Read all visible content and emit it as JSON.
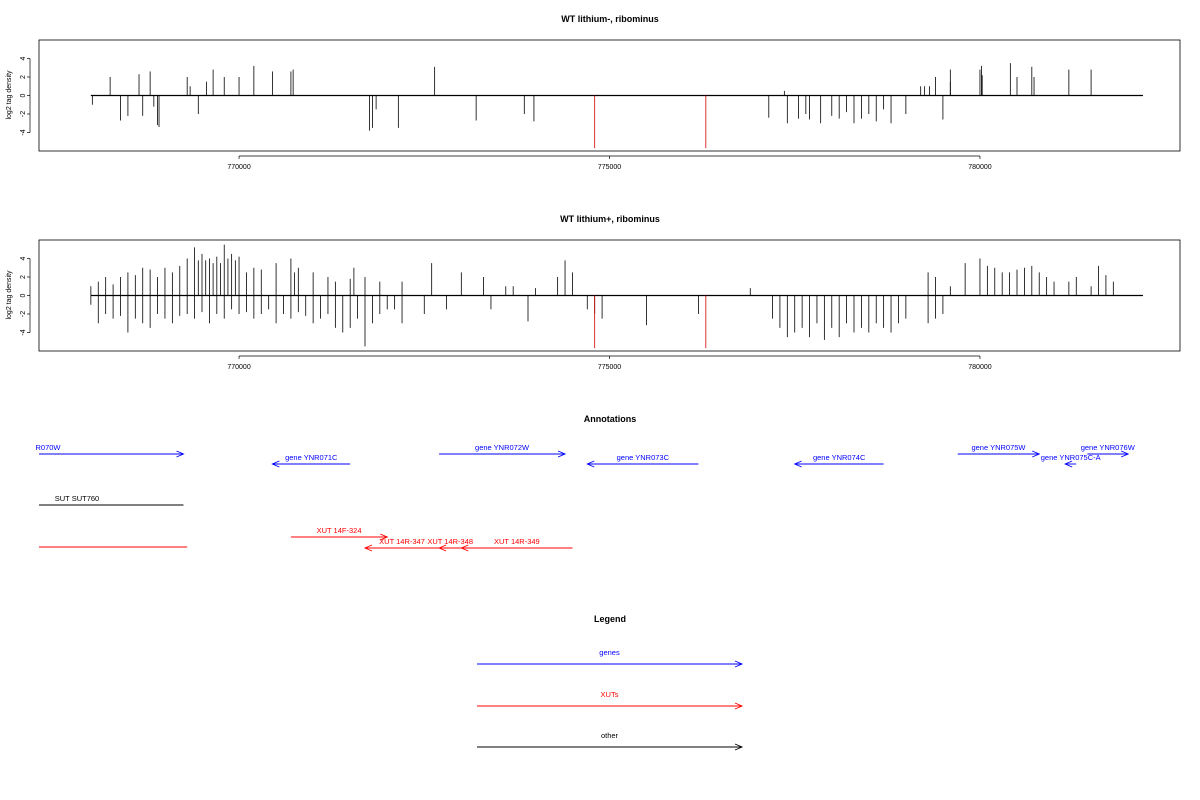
{
  "chart_data": [
    {
      "type": "bar",
      "title": "WT lithium-, ribominus",
      "ylabel": "log2 tag density",
      "xlim": [
        767300,
        782700
      ],
      "ylim": [
        -6,
        6
      ],
      "xticks": [
        770000,
        775000,
        780000
      ],
      "yticks": [
        -4,
        -2,
        0,
        2,
        4
      ],
      "grid": false,
      "series": [
        {
          "strand": "plus",
          "color": "#000000",
          "x": [
            768260,
            768650,
            768800,
            769300,
            769340,
            769560,
            769650,
            769800,
            770000,
            770200,
            770450,
            770700,
            770730,
            772640,
            777360,
            779200,
            779250,
            779320,
            779400,
            779600,
            779600,
            780000,
            780020,
            780030,
            780410,
            780500,
            780700,
            780730,
            781200,
            781500
          ],
          "y": [
            2.0,
            2.3,
            2.6,
            2.0,
            1.0,
            1.5,
            2.8,
            2.0,
            2.0,
            3.2,
            2.6,
            2.6,
            2.8,
            3.1,
            0.5,
            1.0,
            1.0,
            1.0,
            2.0,
            1.5,
            2.8,
            2.8,
            3.2,
            2.2,
            3.5,
            2.0,
            3.1,
            2.0,
            2.8,
            2.8
          ]
        },
        {
          "strand": "minus",
          "color": "#000000",
          "x": [
            768020,
            768400,
            768500,
            768700,
            768850,
            768900,
            768920,
            769450,
            771760,
            771800,
            771850,
            772150,
            773200,
            773850,
            773980,
            777150,
            777400,
            777550,
            777650,
            777700,
            777850,
            778000,
            778100,
            778200,
            778300,
            778400,
            778500,
            778600,
            778700,
            778800,
            779000,
            779500
          ],
          "y": [
            -1.0,
            -2.7,
            -2.2,
            -2.2,
            -1.2,
            -3.2,
            -3.4,
            -2.0,
            -3.8,
            -3.5,
            -1.5,
            -3.5,
            -2.7,
            -2.0,
            -2.8,
            -2.4,
            -3.0,
            -2.5,
            -2.0,
            -2.6,
            -3.0,
            -2.2,
            -2.5,
            -1.8,
            -3.0,
            -2.5,
            -2.0,
            -2.8,
            -1.5,
            -3.0,
            -2.0,
            -2.6
          ]
        },
        {
          "strand": "highlight",
          "color": "#cc0000",
          "x": [
            774800,
            776300
          ],
          "y": [
            -5.7,
            -5.7
          ]
        }
      ]
    },
    {
      "type": "bar",
      "title": "WT lithium+, ribominus",
      "ylabel": "log2 tag density",
      "xlim": [
        767300,
        782700
      ],
      "ylim": [
        -6,
        6
      ],
      "xticks": [
        770000,
        775000,
        780000
      ],
      "yticks": [
        -4,
        -2,
        0,
        2,
        4
      ],
      "grid": false,
      "series": [
        {
          "strand": "plus",
          "color": "#000000",
          "x": [
            768000,
            768100,
            768200,
            768300,
            768400,
            768500,
            768600,
            768700,
            768800,
            768900,
            769000,
            769100,
            769200,
            769300,
            769400,
            769450,
            769500,
            769550,
            769600,
            769650,
            769700,
            769750,
            769800,
            769850,
            769900,
            769950,
            770000,
            770100,
            770200,
            770300,
            770500,
            770700,
            770750,
            770800,
            771000,
            771200,
            771300,
            771500,
            771550,
            771700,
            771900,
            772200,
            772600,
            773000,
            773300,
            773600,
            773700,
            774000,
            774300,
            774400,
            774500,
            776900,
            779300,
            779400,
            779600,
            779800,
            780000,
            780100,
            780200,
            780300,
            780400,
            780500,
            780600,
            780700,
            780800,
            780900,
            781000,
            781200,
            781300,
            781500,
            781600,
            781700,
            781800
          ],
          "y": [
            1.0,
            1.5,
            2.0,
            1.2,
            2.0,
            2.5,
            2.2,
            3.0,
            2.8,
            2.0,
            3.0,
            2.5,
            3.2,
            4.0,
            5.2,
            3.8,
            4.5,
            3.8,
            4.0,
            3.5,
            4.2,
            3.5,
            5.5,
            4.0,
            4.5,
            3.8,
            4.2,
            2.5,
            3.0,
            2.8,
            3.5,
            4.0,
            2.5,
            3.0,
            2.5,
            2.0,
            1.5,
            1.8,
            3.0,
            2.0,
            1.5,
            1.5,
            3.5,
            2.5,
            2.0,
            1.0,
            1.0,
            0.8,
            2.0,
            3.8,
            2.5,
            0.8,
            2.5,
            2.0,
            1.0,
            3.5,
            4.0,
            3.2,
            3.0,
            2.5,
            2.5,
            2.8,
            3.0,
            3.2,
            2.5,
            2.0,
            1.5,
            1.5,
            2.0,
            1.0,
            3.2,
            2.2,
            1.5
          ]
        },
        {
          "strand": "minus",
          "color": "#000000",
          "x": [
            768000,
            768100,
            768200,
            768300,
            768400,
            768500,
            768600,
            768700,
            768800,
            768900,
            769000,
            769100,
            769200,
            769300,
            769400,
            769500,
            769600,
            769700,
            769800,
            769900,
            770000,
            770100,
            770200,
            770300,
            770400,
            770500,
            770600,
            770700,
            770800,
            770900,
            771000,
            771100,
            771200,
            771300,
            771400,
            771500,
            771600,
            771700,
            771800,
            771900,
            772000,
            772100,
            772200,
            772500,
            772800,
            773400,
            773900,
            774700,
            774800,
            774900,
            775500,
            776200,
            777200,
            777300,
            777400,
            777500,
            777600,
            777700,
            777800,
            777900,
            778000,
            778100,
            778200,
            778300,
            778400,
            778500,
            778600,
            778700,
            778800,
            778900,
            779000,
            779300,
            779400,
            779500
          ],
          "y": [
            -1.0,
            -3.0,
            -2.0,
            -2.5,
            -2.2,
            -4.0,
            -2.5,
            -3.0,
            -3.5,
            -2.0,
            -2.5,
            -3.0,
            -2.2,
            -2.0,
            -2.5,
            -1.8,
            -3.0,
            -2.0,
            -2.5,
            -1.5,
            -2.0,
            -1.8,
            -2.5,
            -2.0,
            -1.5,
            -3.0,
            -2.0,
            -2.5,
            -1.8,
            -2.2,
            -3.0,
            -2.5,
            -2.0,
            -3.5,
            -4.0,
            -3.5,
            -2.5,
            -5.5,
            -3.0,
            -2.0,
            -1.5,
            -1.5,
            -3.0,
            -2.0,
            -1.5,
            -1.5,
            -2.8,
            -1.5,
            -2.0,
            -2.5,
            -3.2,
            -2.0,
            -2.5,
            -3.5,
            -4.5,
            -4.0,
            -3.5,
            -4.5,
            -3.0,
            -4.8,
            -3.5,
            -4.5,
            -3.0,
            -4.0,
            -3.5,
            -4.0,
            -3.0,
            -3.5,
            -4.0,
            -3.0,
            -2.5,
            -3.0,
            -2.5,
            -2.0
          ]
        },
        {
          "strand": "highlight",
          "color": "#cc0000",
          "x": [
            774800,
            776300
          ],
          "y": [
            -5.7,
            -5.7
          ]
        }
      ]
    }
  ],
  "annotations": {
    "title": "Annotations",
    "genes": [
      {
        "label": "R070W",
        "x1": 767300,
        "x2": 769250,
        "dir": "right"
      },
      {
        "label": "gene YNR071C",
        "x1": 770450,
        "x2": 771500,
        "dir": "left"
      },
      {
        "label": "gene YNR072W",
        "x1": 772700,
        "x2": 774400,
        "dir": "right"
      },
      {
        "label": "gene YNR073C",
        "x1": 774700,
        "x2": 776200,
        "dir": "left"
      },
      {
        "label": "gene YNR074C",
        "x1": 777500,
        "x2": 778700,
        "dir": "left"
      },
      {
        "label": "gene YNR075W",
        "x1": 779700,
        "x2": 780800,
        "dir": "right"
      },
      {
        "label": "gene YNR075C-A",
        "x1": 781150,
        "x2": 781300,
        "dir": "left"
      },
      {
        "label": "gene YNR076W",
        "x1": 781450,
        "x2": 782000,
        "dir": "right"
      }
    ],
    "other": [
      {
        "label": "SUT SUT760",
        "x1": 767300,
        "x2": 769250,
        "dir": "none"
      }
    ],
    "xuts": [
      {
        "label": "",
        "x1": 767300,
        "x2": 769300,
        "dir": "none"
      },
      {
        "label": "XUT 14F-324",
        "x1": 770700,
        "x2": 772000,
        "dir": "right"
      },
      {
        "label": "XUT 14R-347",
        "x1": 771700,
        "x2": 772700,
        "dir": "left"
      },
      {
        "label": "XUT 14R-348",
        "x1": 772700,
        "x2": 773000,
        "dir": "left"
      },
      {
        "label": "XUT 14R-349",
        "x1": 773000,
        "x2": 774500,
        "dir": "left"
      }
    ]
  },
  "legend": {
    "title": "Legend",
    "items": [
      {
        "label": "genes",
        "color": "#0000ff"
      },
      {
        "label": "XUTs",
        "color": "#ff0000"
      },
      {
        "label": "other",
        "color": "#000000"
      }
    ]
  },
  "colors": {
    "gene": "#0000ff",
    "xut": "#ff0000",
    "other": "#000000",
    "axis": "#000000"
  }
}
